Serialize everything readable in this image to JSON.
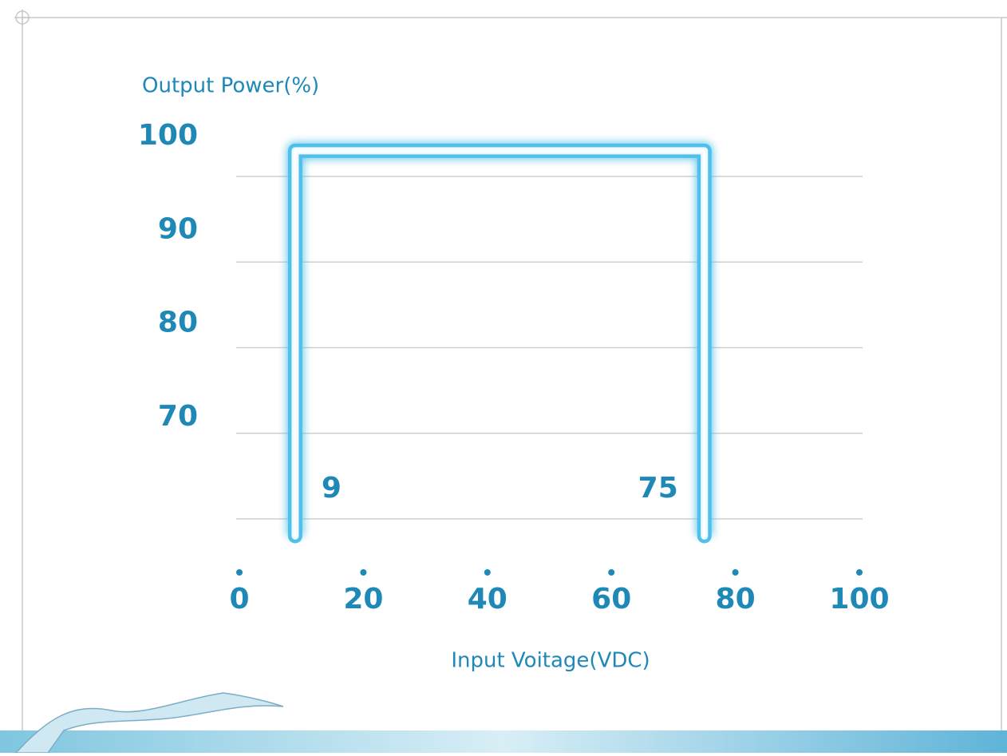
{
  "chart_data": {
    "type": "line",
    "y_label": "Output Power(%)",
    "x_label": "Input Voitage(VDC)",
    "series": [
      {
        "x": [
          9,
          9,
          75,
          75
        ],
        "values": [
          58,
          103,
          103,
          58
        ],
        "color": "#4fc0ea"
      }
    ],
    "annotations": [
      "9",
      "75"
    ],
    "xlim": [
      0,
      100
    ],
    "xticks": [
      0,
      20,
      40,
      60,
      80,
      100
    ],
    "ylim": [
      60,
      105
    ],
    "yticks": [
      70,
      80,
      90,
      100
    ],
    "grid": true
  }
}
